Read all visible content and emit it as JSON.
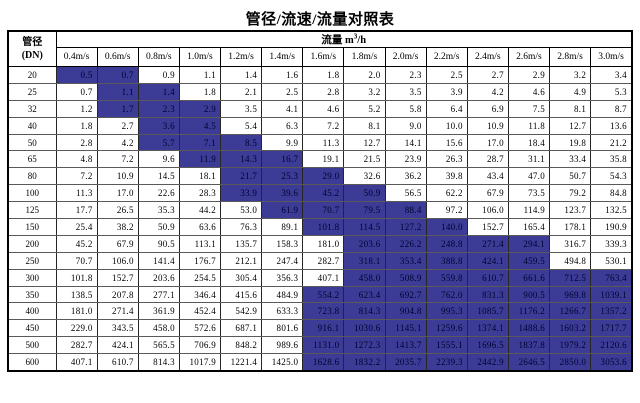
{
  "title": "管径/流速/流量对照表",
  "colors": {
    "highlight_bg": "#3c3c96",
    "highlight_text": "#000033",
    "outer_border": "#000000",
    "grid_horizontal": "#595959",
    "grid_vertical": "#262626"
  },
  "table": {
    "corner_header": {
      "line1": "管径",
      "line2": "(DN)"
    },
    "flow_header": {
      "label": "流量 m",
      "sup": "3",
      "suffix": "/h"
    },
    "velocity_headers": [
      "0.4m/s",
      "0.6m/s",
      "0.8m/s",
      "1.0m/s",
      "1.2m/s",
      "1.4m/s",
      "1.6m/s",
      "1.8m/s",
      "2.0m/s",
      "2.2m/s",
      "2.4m/s",
      "2.6m/s",
      "2.8m/s",
      "3.0m/s"
    ],
    "rows": [
      {
        "dn": "20",
        "hl": [
          0,
          1
        ],
        "values": [
          "0.5",
          "0.7",
          "0.9",
          "1.1",
          "1.4",
          "1.6",
          "1.8",
          "2.0",
          "2.3",
          "2.5",
          "2.7",
          "2.9",
          "3.2",
          "3.4"
        ]
      },
      {
        "dn": "25",
        "hl": [
          1,
          2
        ],
        "values": [
          "0.7",
          "1.1",
          "1.4",
          "1.8",
          "2.1",
          "2.5",
          "2.8",
          "3.2",
          "3.5",
          "3.9",
          "4.2",
          "4.6",
          "4.9",
          "5.3"
        ]
      },
      {
        "dn": "32",
        "hl": [
          1,
          3
        ],
        "values": [
          "1.2",
          "1.7",
          "2.3",
          "2.9",
          "3.5",
          "4.1",
          "4.6",
          "5.2",
          "5.8",
          "6.4",
          "6.9",
          "7.5",
          "8.1",
          "8.7"
        ]
      },
      {
        "dn": "40",
        "hl": [
          2,
          3
        ],
        "values": [
          "1.8",
          "2.7",
          "3.6",
          "4.5",
          "5.4",
          "6.3",
          "7.2",
          "8.1",
          "9.0",
          "10.0",
          "10.9",
          "11.8",
          "12.7",
          "13.6"
        ]
      },
      {
        "dn": "50",
        "hl": [
          2,
          4
        ],
        "values": [
          "2.8",
          "4.2",
          "5.7",
          "7.1",
          "8.5",
          "9.9",
          "11.3",
          "12.7",
          "14.1",
          "15.6",
          "17.0",
          "18.4",
          "19.8",
          "21.2"
        ]
      },
      {
        "dn": "65",
        "hl": [
          3,
          5
        ],
        "values": [
          "4.8",
          "7.2",
          "9.6",
          "11.9",
          "14.3",
          "16.7",
          "19.1",
          "21.5",
          "23.9",
          "26.3",
          "28.7",
          "31.1",
          "33.4",
          "35.8"
        ]
      },
      {
        "dn": "80",
        "hl": [
          4,
          6
        ],
        "values": [
          "7.2",
          "10.9",
          "14.5",
          "18.1",
          "21.7",
          "25.3",
          "29.0",
          "32.6",
          "36.2",
          "39.8",
          "43.4",
          "47.0",
          "50.7",
          "54.3"
        ]
      },
      {
        "dn": "100",
        "hl": [
          4,
          7
        ],
        "values": [
          "11.3",
          "17.0",
          "22.6",
          "28.3",
          "33.9",
          "39.6",
          "45.2",
          "50.9",
          "56.5",
          "62.2",
          "67.9",
          "73.5",
          "79.2",
          "84.8"
        ]
      },
      {
        "dn": "125",
        "hl": [
          5,
          8
        ],
        "values": [
          "17.7",
          "26.5",
          "35.3",
          "44.2",
          "53.0",
          "61.9",
          "70.7",
          "79.5",
          "88.4",
          "97.2",
          "106.0",
          "114.9",
          "123.7",
          "132.5"
        ]
      },
      {
        "dn": "150",
        "hl": [
          6,
          9
        ],
        "values": [
          "25.4",
          "38.2",
          "50.9",
          "63.6",
          "76.3",
          "89.1",
          "101.8",
          "114.5",
          "127.2",
          "140.0",
          "152.7",
          "165.4",
          "178.1",
          "190.9"
        ]
      },
      {
        "dn": "200",
        "hl": [
          7,
          11
        ],
        "values": [
          "45.2",
          "67.9",
          "90.5",
          "113.1",
          "135.7",
          "158.3",
          "181.0",
          "203.6",
          "226.2",
          "248.8",
          "271.4",
          "294.1",
          "316.7",
          "339.3"
        ]
      },
      {
        "dn": "250",
        "hl": [
          7,
          11
        ],
        "values": [
          "70.7",
          "106.0",
          "141.4",
          "176.7",
          "212.1",
          "247.4",
          "282.7",
          "318.1",
          "353.4",
          "388.8",
          "424.1",
          "459.5",
          "494.8",
          "530.1"
        ]
      },
      {
        "dn": "300",
        "hl": [
          7,
          13
        ],
        "values": [
          "101.8",
          "152.7",
          "203.6",
          "254.5",
          "305.4",
          "356.3",
          "407.1",
          "458.0",
          "508.9",
          "559.8",
          "610.7",
          "661.6",
          "712.5",
          "763.4"
        ]
      },
      {
        "dn": "350",
        "hl": [
          6,
          13
        ],
        "values": [
          "138.5",
          "207.8",
          "277.1",
          "346.4",
          "415.6",
          "484.9",
          "554.2",
          "623.4",
          "692.7",
          "762.0",
          "831.3",
          "900.5",
          "969.8",
          "1039.1"
        ]
      },
      {
        "dn": "400",
        "hl": [
          6,
          13
        ],
        "values": [
          "181.0",
          "271.4",
          "361.9",
          "452.4",
          "542.9",
          "633.3",
          "723.8",
          "814.3",
          "904.8",
          "995.3",
          "1085.7",
          "1176.2",
          "1266.7",
          "1357.2"
        ]
      },
      {
        "dn": "450",
        "hl": [
          6,
          13
        ],
        "values": [
          "229.0",
          "343.5",
          "458.0",
          "572.6",
          "687.1",
          "801.6",
          "916.1",
          "1030.6",
          "1145.1",
          "1259.6",
          "1374.1",
          "1488.6",
          "1603.2",
          "1717.7"
        ]
      },
      {
        "dn": "500",
        "hl": [
          6,
          13
        ],
        "values": [
          "282.7",
          "424.1",
          "565.5",
          "706.9",
          "848.2",
          "989.6",
          "1131.0",
          "1272.3",
          "1413.7",
          "1555.1",
          "1696.5",
          "1837.8",
          "1979.2",
          "2120.6"
        ]
      },
      {
        "dn": "600",
        "hl": [
          6,
          13
        ],
        "values": [
          "407.1",
          "610.7",
          "814.3",
          "1017.9",
          "1221.4",
          "1425.0",
          "1628.6",
          "1832.2",
          "2035.7",
          "2239.3",
          "2442.9",
          "2646.5",
          "2850.0",
          "3053.6"
        ]
      }
    ]
  }
}
